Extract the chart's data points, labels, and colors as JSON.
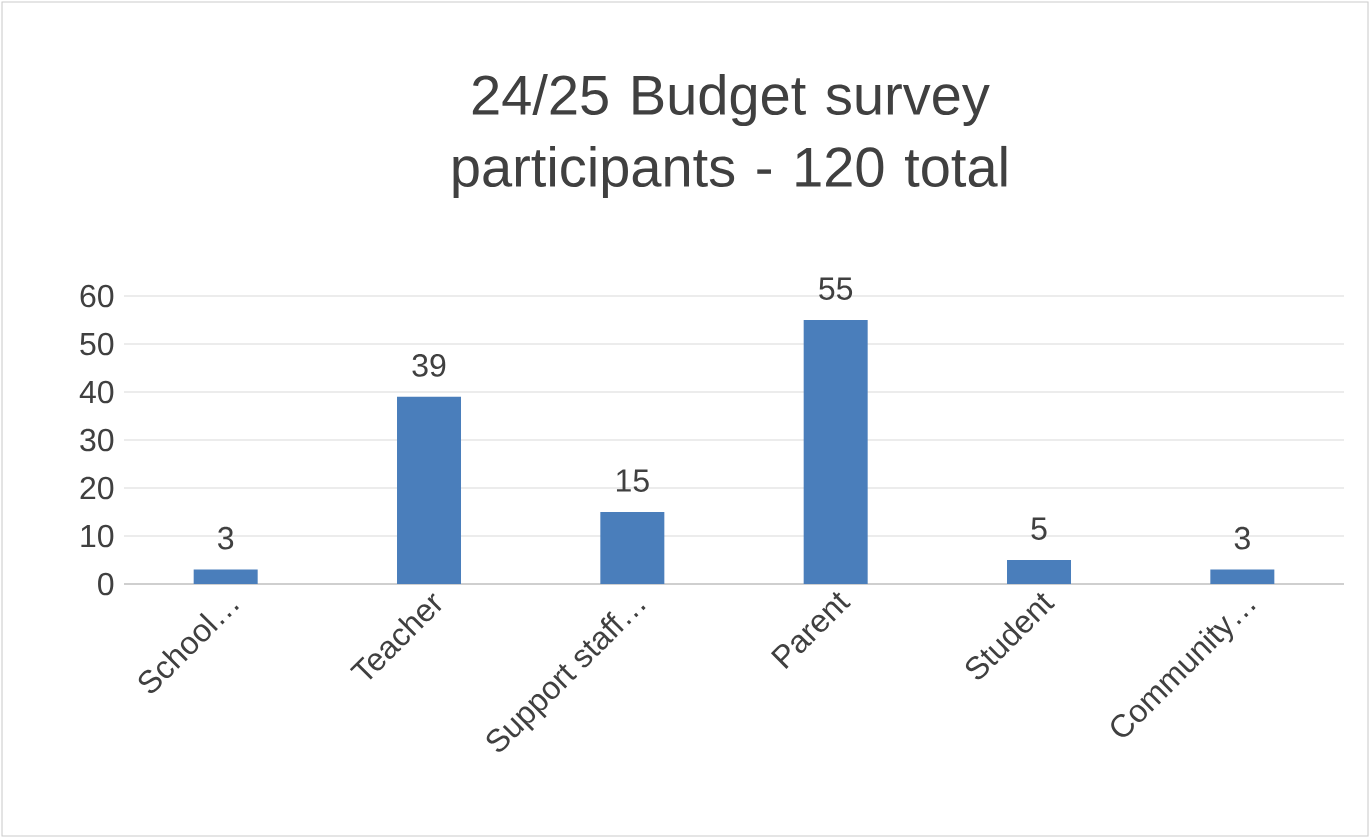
{
  "chart_data": {
    "type": "bar",
    "title": "24/25 Budget survey participants - 120 total",
    "categories": [
      "School…",
      "Teacher",
      "Support staff…",
      "Parent",
      "Student",
      "Community…"
    ],
    "values": [
      3,
      39,
      15,
      55,
      5,
      3
    ],
    "color": "#4a7ebb",
    "ylim": [
      0,
      60
    ],
    "yticks": [
      0,
      10,
      20,
      30,
      40,
      50,
      60
    ],
    "grid": "y",
    "data_labels": true
  }
}
